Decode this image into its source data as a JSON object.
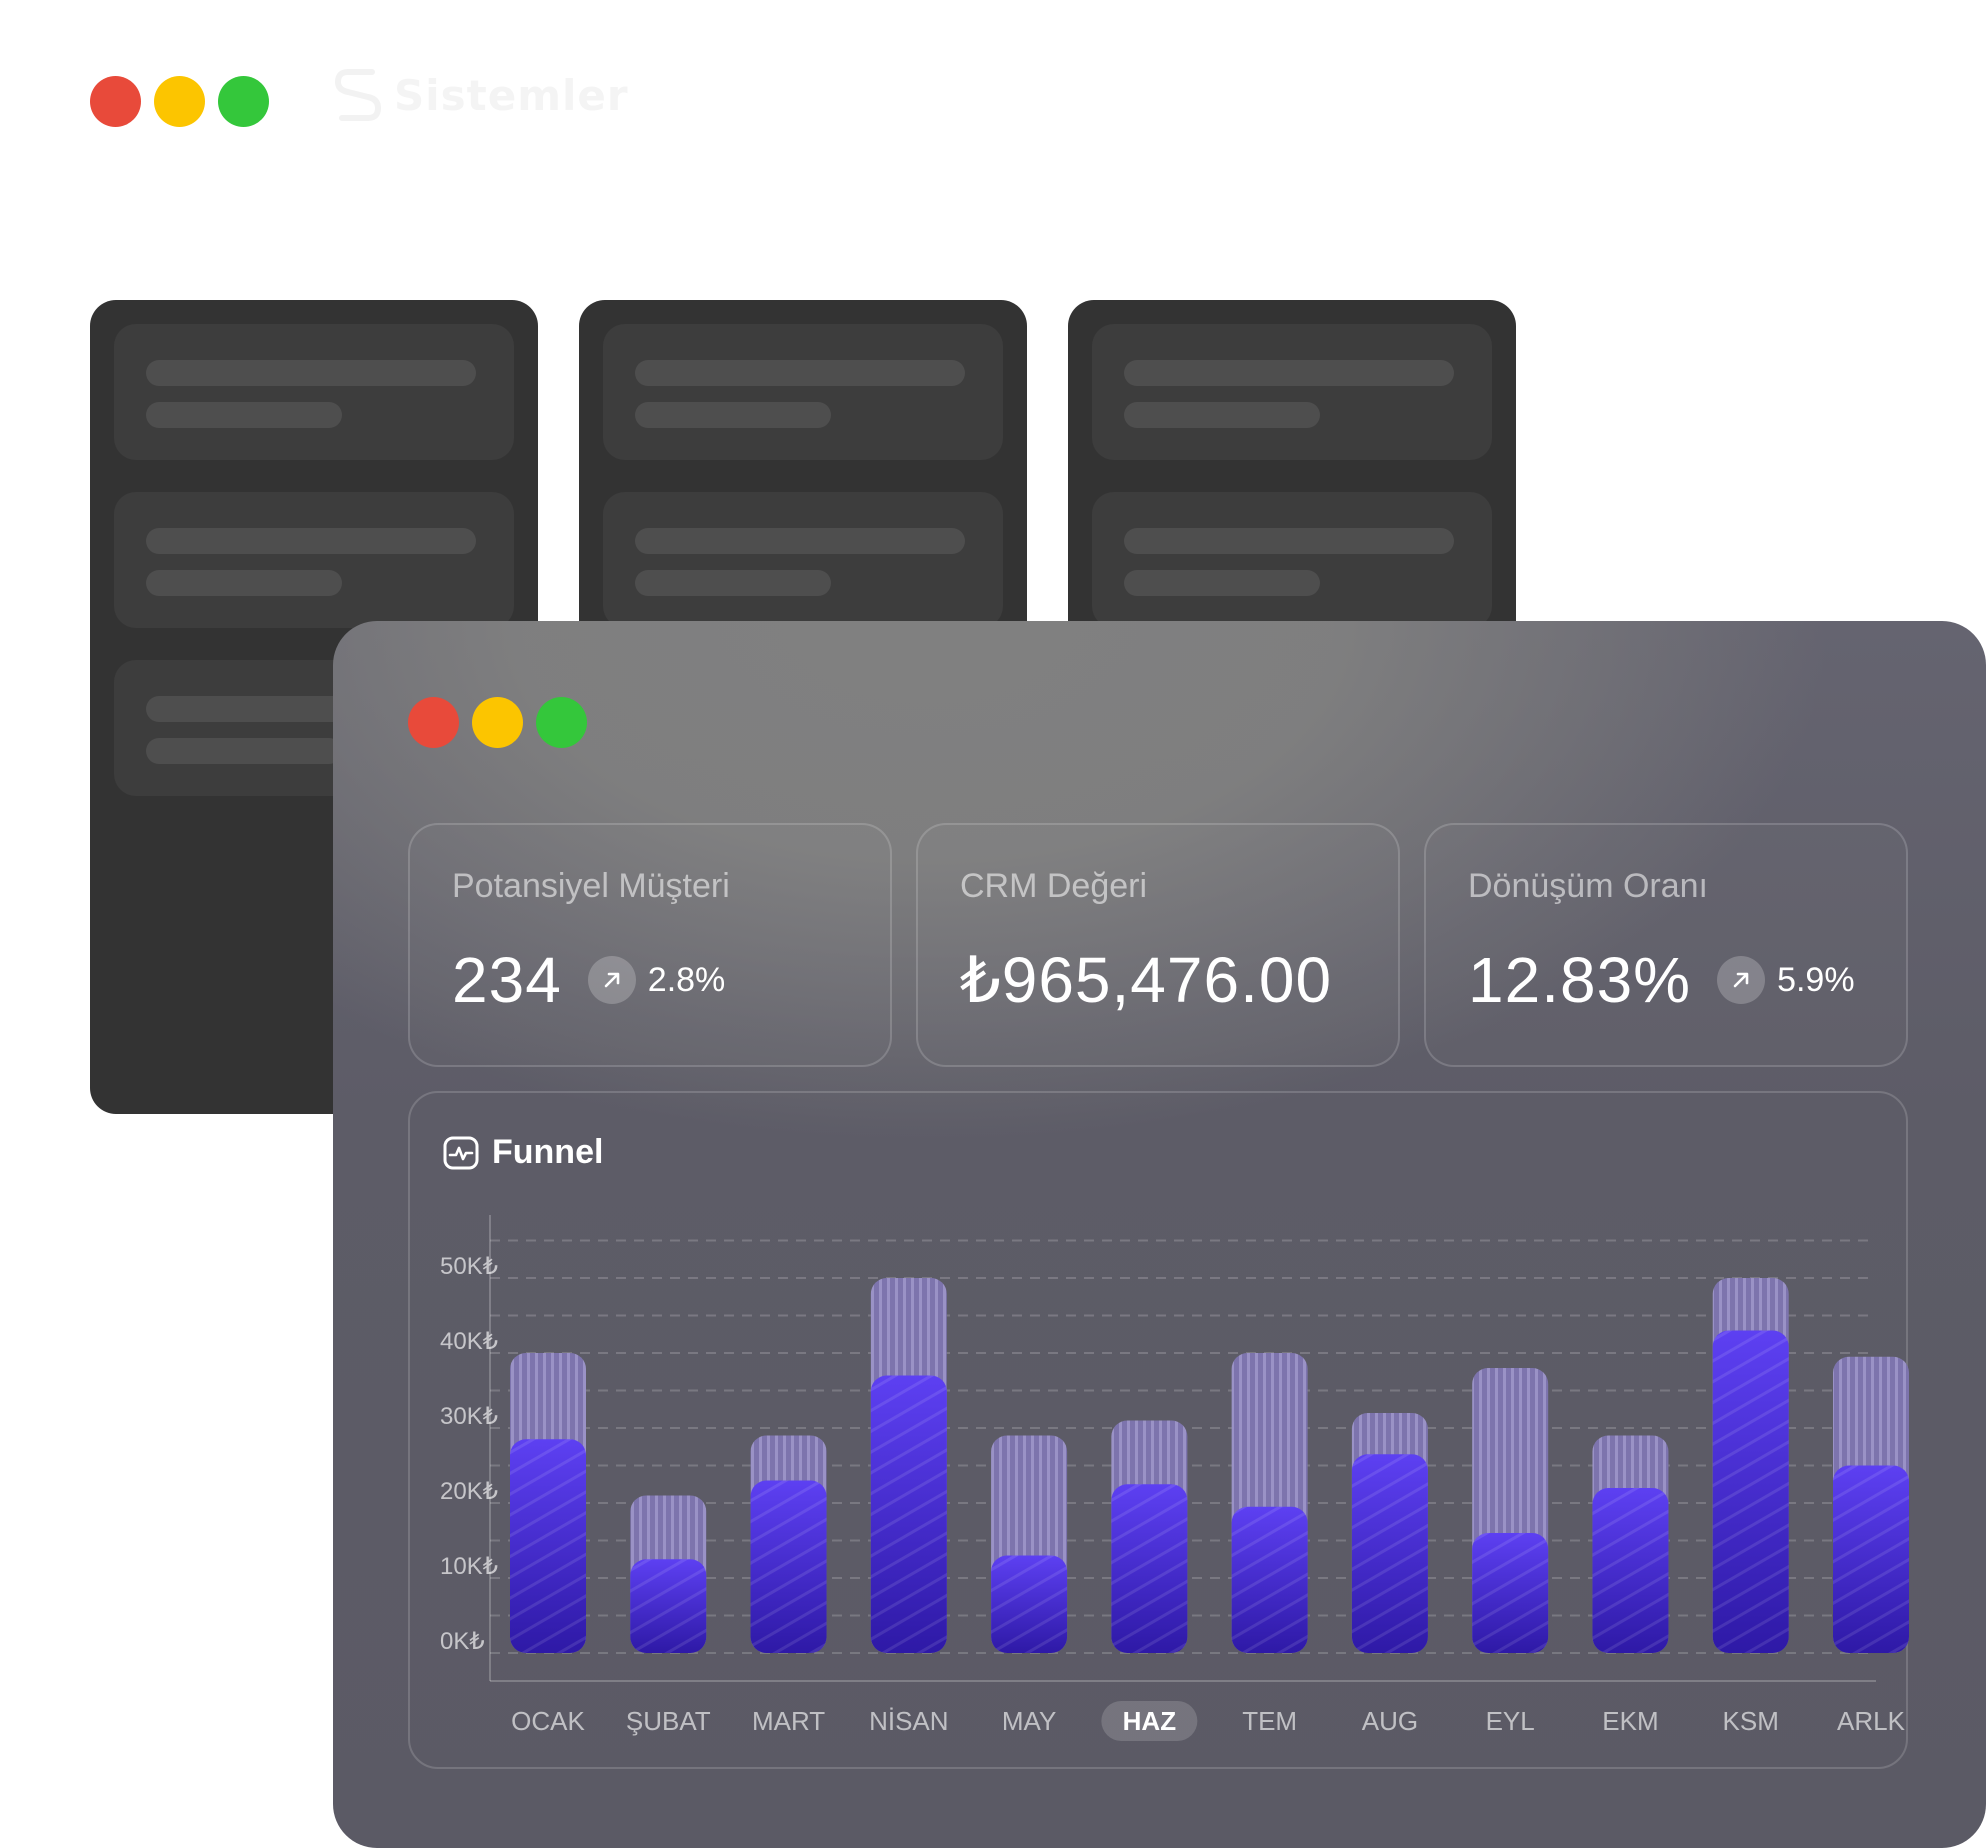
{
  "window_controls": [
    "close",
    "minimize",
    "maximize"
  ],
  "brand": {
    "name": "Sistemler",
    "icon": "s-logo-icon"
  },
  "kpis": [
    {
      "label": "Potansiyel Müşteri",
      "value": "234",
      "trend_icon": "arrow-up-right-icon",
      "trend": "2.8%"
    },
    {
      "label": "CRM Değeri",
      "value": "₺965,476.00"
    },
    {
      "label": "Dönüşüm Oranı",
      "value": "12.83%",
      "trend_icon": "arrow-up-right-icon",
      "trend": "5.9%"
    }
  ],
  "funnel": {
    "title": "Funnel",
    "icon": "activity-icon"
  },
  "colors": {
    "accent": "#5b3ef0",
    "accent_dark": "#2d18a8",
    "target": "#8a7fbe",
    "window": "#5d5c67"
  },
  "chart_data": {
    "type": "bar",
    "title": "Funnel",
    "categories": [
      "OCAK",
      "ŞUBAT",
      "MART",
      "NİSAN",
      "MAY",
      "HAZ",
      "TEM",
      "AUG",
      "EYL",
      "EKM",
      "KSM",
      "ARLK"
    ],
    "selected_category": "HAZ",
    "y_tick_labels": [
      "0K₺",
      "10K₺",
      "20K₺",
      "30K₺",
      "40K₺",
      "50K₺"
    ],
    "y_ticks": [
      0,
      10,
      20,
      30,
      40,
      50
    ],
    "ylim": [
      0,
      55
    ],
    "grid": true,
    "series": [
      {
        "values": [
          40,
          21,
          29,
          50,
          29,
          31,
          40,
          32,
          38,
          29,
          50,
          39.5
        ]
      },
      {
        "values": [
          28.5,
          12.5,
          23,
          37,
          13,
          22.5,
          19.5,
          26.5,
          16,
          22,
          43,
          25
        ]
      }
    ]
  }
}
